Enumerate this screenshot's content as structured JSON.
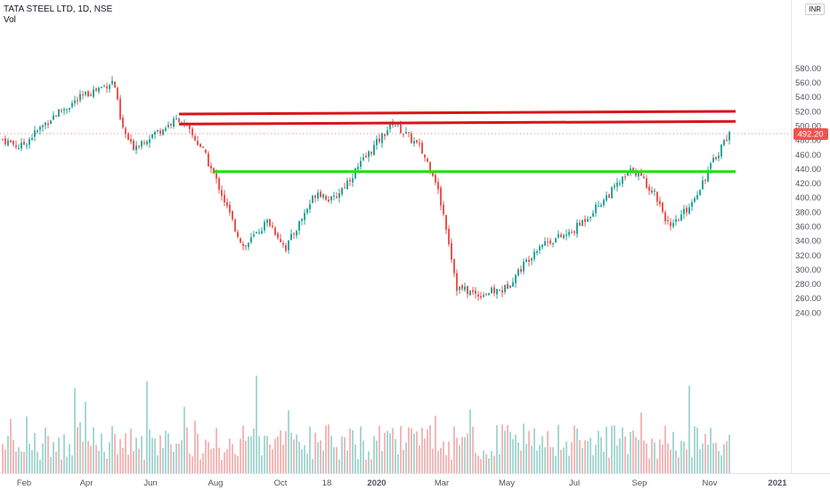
{
  "header": {
    "symbol": "TATA STEEL LTD, 1D, NSE",
    "volume_label": "Vol",
    "currency": "INR"
  },
  "colors": {
    "up": "#26a69a",
    "down": "#ef5350",
    "vol_up": "#a8d8d3",
    "vol_down": "#f5b8b7",
    "resistance": "#d9141b",
    "support": "#22e017",
    "price_label_bg": "#ef5350",
    "axis_text": "#50535e"
  },
  "chart_data": {
    "type": "line",
    "title": "TATA STEEL LTD, 1D, NSE",
    "x_ticks": [
      "Feb",
      "Apr",
      "Jun",
      "Aug",
      "Oct",
      "18",
      "2020",
      "Mar",
      "May",
      "Jul",
      "Sep",
      "Nov",
      "2021"
    ],
    "y_ticks": [
      "240.00",
      "260.00",
      "280.00",
      "300.00",
      "320.00",
      "340.00",
      "360.00",
      "380.00",
      "400.00",
      "420.00",
      "440.00",
      "460.00",
      "480.00",
      "500.00",
      "520.00",
      "540.00",
      "560.00",
      "580.00"
    ],
    "ylim": [
      228,
      590
    ],
    "last_price": 492.2,
    "last_price_label": "492.20",
    "price_path": [
      [
        "Jan",
        482
      ],
      [
        "Feb",
        470
      ],
      [
        "Mar",
        515
      ],
      [
        "Apr",
        545
      ],
      [
        "Apr-end",
        562
      ],
      [
        "May",
        500
      ],
      [
        "Jun",
        470
      ],
      [
        "Jun-mid",
        510
      ],
      [
        "Jul",
        470
      ],
      [
        "Aug",
        415
      ],
      [
        "Aug-mid",
        360
      ],
      [
        "Sep",
        330
      ],
      [
        "Oct",
        368
      ],
      [
        "Oct-mid",
        330
      ],
      [
        "Nov",
        410
      ],
      [
        "Dec",
        395
      ],
      [
        "Dec-mid",
        440
      ],
      [
        "2020",
        505
      ],
      [
        "Jan-mid",
        470
      ],
      [
        "Feb",
        430
      ],
      [
        "Mar",
        360
      ],
      [
        "Mar-mid",
        275
      ],
      [
        "Apr",
        265
      ],
      [
        "May",
        272
      ],
      [
        "Jun",
        335
      ],
      [
        "Jul",
        350
      ],
      [
        "Aug",
        440
      ],
      [
        "Sep",
        405
      ],
      [
        "Sep-mid",
        355
      ],
      [
        "Oct",
        392
      ],
      [
        "Nov",
        492
      ]
    ],
    "horizontal_levels": [
      {
        "kind": "resistance",
        "price": 518,
        "start": "Jun",
        "end": "Nov"
      },
      {
        "kind": "resistance",
        "price": 504,
        "start": "Jun",
        "end": "Nov"
      },
      {
        "kind": "support",
        "price": 436,
        "start": "Aug",
        "end": "Nov"
      }
    ],
    "grid": false,
    "legend": "none"
  }
}
